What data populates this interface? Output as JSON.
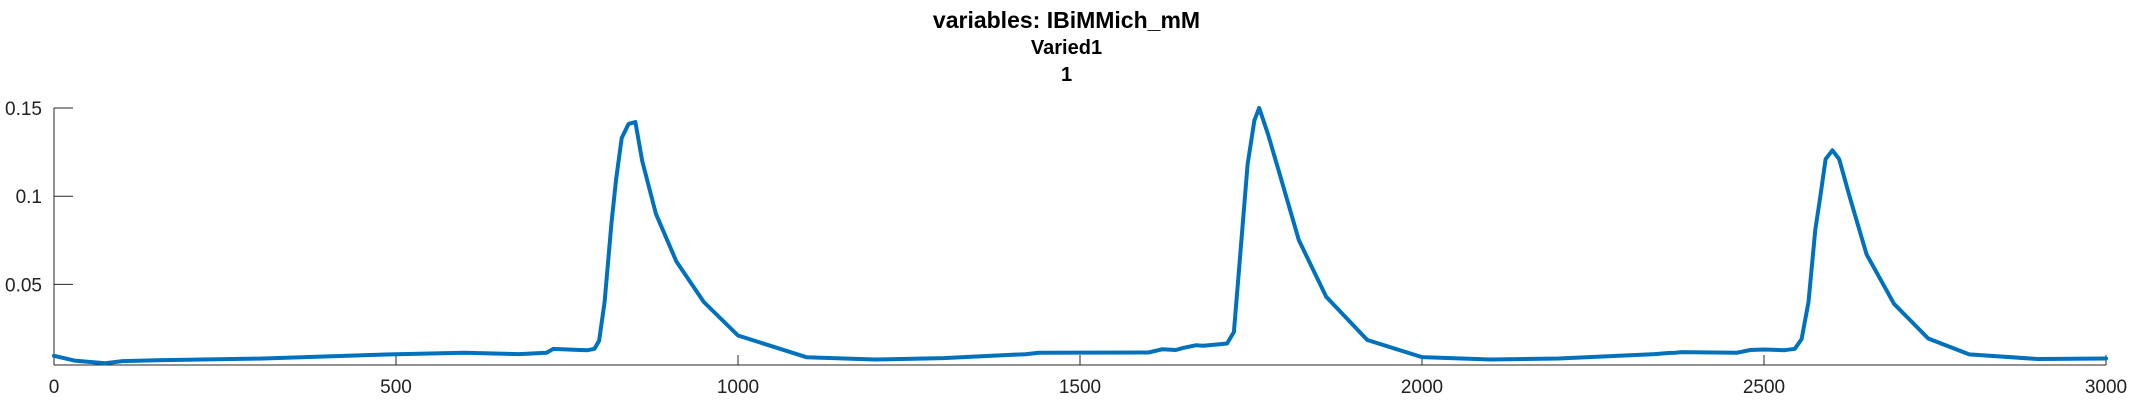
{
  "chart_data": {
    "type": "line",
    "title": "variables: IBiMMich_mM",
    "subtitle": "Varied1",
    "subtitle2": "1",
    "xlabel": "",
    "ylabel": "",
    "xlim": [
      0,
      3000
    ],
    "ylim": [
      0.0043,
      0.15
    ],
    "grid": false,
    "xticks": [
      0,
      500,
      1000,
      1500,
      2000,
      2500,
      3000
    ],
    "xtick_labels": [
      "0",
      "500",
      "1000",
      "1500",
      "2000",
      "2500",
      "3000"
    ],
    "yticks": [
      0.05,
      0.1,
      0.15
    ],
    "ytick_labels": [
      "0.05",
      "0.1",
      "0.15"
    ],
    "series": [
      {
        "name": "IBiMMich_mM",
        "color": "#0072BD",
        "x": [
          0,
          30,
          75,
          100,
          150,
          300,
          500,
          600,
          680,
          720,
          730,
          760,
          780,
          790,
          797,
          805,
          815,
          822,
          830,
          840,
          850,
          860,
          880,
          910,
          950,
          1000,
          1100,
          1200,
          1300,
          1390,
          1420,
          1440,
          1600,
          1620,
          1640,
          1650,
          1670,
          1680,
          1700,
          1715,
          1725,
          1735,
          1745,
          1755,
          1762,
          1775,
          1790,
          1820,
          1860,
          1920,
          2000,
          2100,
          2200,
          2340,
          2360,
          2370,
          2380,
          2460,
          2480,
          2500,
          2530,
          2545,
          2555,
          2565,
          2575,
          2582,
          2590,
          2600,
          2610,
          2625,
          2650,
          2690,
          2740,
          2800,
          2900,
          3000
        ],
        "values": [
          0.0095,
          0.0068,
          0.0053,
          0.0065,
          0.007,
          0.0079,
          0.0104,
          0.0112,
          0.0105,
          0.0112,
          0.0134,
          0.0129,
          0.0127,
          0.0135,
          0.018,
          0.04,
          0.085,
          0.11,
          0.133,
          0.141,
          0.142,
          0.12,
          0.09,
          0.063,
          0.04,
          0.021,
          0.0087,
          0.0074,
          0.0082,
          0.0099,
          0.0104,
          0.0113,
          0.0114,
          0.0132,
          0.0128,
          0.0139,
          0.0155,
          0.0152,
          0.0159,
          0.0165,
          0.023,
          0.07,
          0.118,
          0.143,
          0.15,
          0.135,
          0.115,
          0.075,
          0.043,
          0.0185,
          0.0088,
          0.0074,
          0.008,
          0.0105,
          0.0111,
          0.0112,
          0.0116,
          0.0112,
          0.0128,
          0.0131,
          0.0127,
          0.0135,
          0.019,
          0.04,
          0.081,
          0.099,
          0.121,
          0.126,
          0.121,
          0.1,
          0.067,
          0.039,
          0.0193,
          0.0103,
          0.0077,
          0.008
        ]
      }
    ]
  }
}
